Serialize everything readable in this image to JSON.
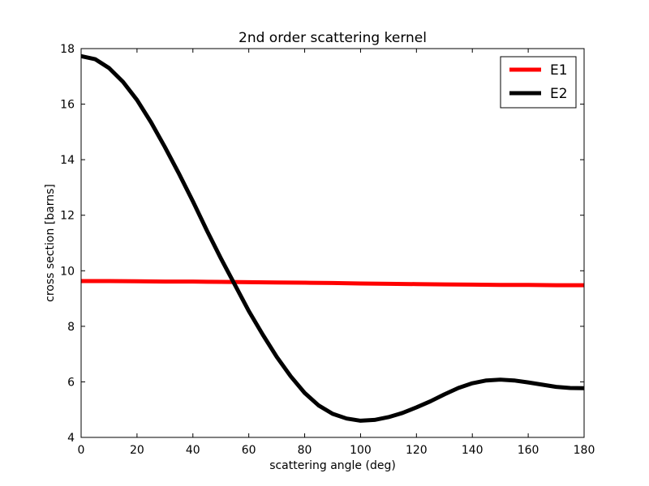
{
  "chart_data": {
    "type": "line",
    "title": "2nd order scattering kernel",
    "xlabel": "scattering angle (deg)",
    "ylabel": "cross section [barns]",
    "xlim": [
      0,
      180
    ],
    "ylim": [
      4,
      18
    ],
    "xticks": [
      0,
      20,
      40,
      60,
      80,
      100,
      120,
      140,
      160,
      180
    ],
    "yticks": [
      4,
      6,
      8,
      10,
      12,
      14,
      16,
      18
    ],
    "grid": false,
    "legend_position": "top-right",
    "series": [
      {
        "name": "E1",
        "color": "#ff0000",
        "x": [
          0,
          10,
          20,
          30,
          40,
          50,
          60,
          70,
          80,
          90,
          100,
          110,
          120,
          130,
          140,
          150,
          160,
          170,
          180
        ],
        "y": [
          9.63,
          9.63,
          9.62,
          9.61,
          9.61,
          9.6,
          9.59,
          9.58,
          9.57,
          9.56,
          9.54,
          9.53,
          9.52,
          9.51,
          9.5,
          9.49,
          9.49,
          9.48,
          9.48
        ]
      },
      {
        "name": "E2",
        "color": "#000000",
        "x": [
          0,
          5,
          10,
          15,
          20,
          25,
          30,
          35,
          40,
          45,
          50,
          55,
          60,
          65,
          70,
          75,
          80,
          85,
          90,
          95,
          100,
          105,
          110,
          115,
          120,
          125,
          130,
          135,
          140,
          145,
          150,
          155,
          160,
          165,
          170,
          175,
          180
        ],
        "y": [
          17.73,
          17.62,
          17.3,
          16.8,
          16.15,
          15.35,
          14.45,
          13.5,
          12.5,
          11.45,
          10.45,
          9.5,
          8.55,
          7.7,
          6.9,
          6.2,
          5.6,
          5.15,
          4.85,
          4.68,
          4.6,
          4.63,
          4.73,
          4.88,
          5.08,
          5.3,
          5.55,
          5.78,
          5.95,
          6.05,
          6.08,
          6.05,
          5.98,
          5.9,
          5.82,
          5.78,
          5.77
        ]
      }
    ]
  }
}
